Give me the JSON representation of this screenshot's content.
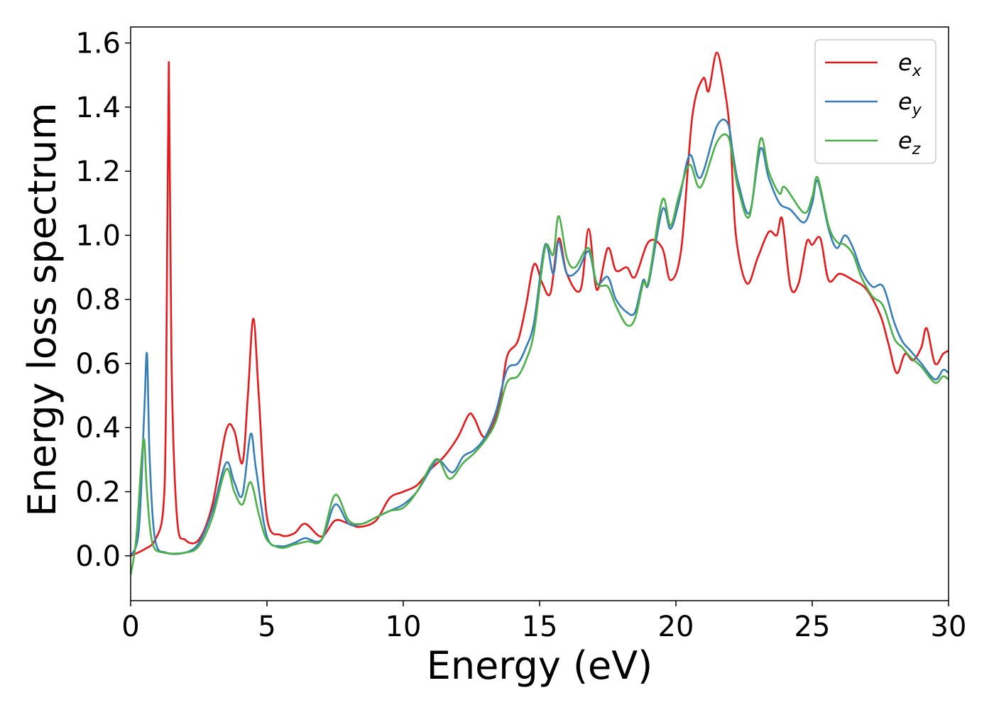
{
  "chart_data": {
    "type": "line",
    "xlabel": "Energy (eV)",
    "ylabel": "Energy loss spectrum",
    "xlim": [
      0,
      30
    ],
    "ylim": [
      -0.14,
      1.65
    ],
    "xticks": [
      "0",
      "5",
      "10",
      "15",
      "20",
      "25",
      "30"
    ],
    "yticks": [
      "0.0",
      "0.2",
      "0.4",
      "0.6",
      "0.8",
      "1.0",
      "1.2",
      "1.4",
      "1.6"
    ],
    "grid": false,
    "legend_position": "top-right",
    "series": [
      {
        "name": "e",
        "subscript": "x",
        "color": "#e41a1c",
        "points": [
          [
            0,
            0.0
          ],
          [
            0.5,
            0.02
          ],
          [
            0.9,
            0.05
          ],
          [
            1.2,
            0.15
          ],
          [
            1.3,
            0.5
          ],
          [
            1.4,
            1.54
          ],
          [
            1.5,
            0.6
          ],
          [
            1.7,
            0.12
          ],
          [
            2.0,
            0.05
          ],
          [
            2.5,
            0.05
          ],
          [
            3.0,
            0.16
          ],
          [
            3.5,
            0.39
          ],
          [
            3.8,
            0.39
          ],
          [
            4.1,
            0.29
          ],
          [
            4.3,
            0.5
          ],
          [
            4.5,
            0.74
          ],
          [
            4.7,
            0.5
          ],
          [
            5.0,
            0.12
          ],
          [
            5.5,
            0.065
          ],
          [
            6.0,
            0.07
          ],
          [
            6.4,
            0.1
          ],
          [
            7.0,
            0.06
          ],
          [
            7.5,
            0.11
          ],
          [
            8.0,
            0.1
          ],
          [
            8.4,
            0.09
          ],
          [
            9.0,
            0.11
          ],
          [
            9.5,
            0.18
          ],
          [
            10.0,
            0.2
          ],
          [
            10.5,
            0.22
          ],
          [
            11.0,
            0.27
          ],
          [
            11.5,
            0.31
          ],
          [
            12.0,
            0.37
          ],
          [
            12.4,
            0.44
          ],
          [
            12.6,
            0.43
          ],
          [
            13.0,
            0.37
          ],
          [
            13.5,
            0.46
          ],
          [
            13.8,
            0.62
          ],
          [
            14.2,
            0.67
          ],
          [
            14.5,
            0.78
          ],
          [
            14.8,
            0.91
          ],
          [
            15.1,
            0.85
          ],
          [
            15.4,
            0.82
          ],
          [
            15.7,
            0.99
          ],
          [
            16.0,
            0.88
          ],
          [
            16.5,
            0.83
          ],
          [
            16.8,
            1.02
          ],
          [
            17.1,
            0.83
          ],
          [
            17.5,
            0.96
          ],
          [
            17.8,
            0.89
          ],
          [
            18.2,
            0.9
          ],
          [
            18.5,
            0.87
          ],
          [
            19.0,
            0.98
          ],
          [
            19.5,
            0.96
          ],
          [
            19.8,
            0.86
          ],
          [
            20.2,
            0.96
          ],
          [
            20.6,
            1.37
          ],
          [
            21.0,
            1.49
          ],
          [
            21.2,
            1.45
          ],
          [
            21.5,
            1.57
          ],
          [
            21.8,
            1.45
          ],
          [
            22.0,
            1.3
          ],
          [
            22.2,
            1.0
          ],
          [
            22.6,
            0.85
          ],
          [
            23.0,
            0.93
          ],
          [
            23.4,
            1.01
          ],
          [
            23.7,
            1.0
          ],
          [
            23.9,
            1.05
          ],
          [
            24.2,
            0.84
          ],
          [
            24.5,
            0.85
          ],
          [
            24.8,
            0.98
          ],
          [
            25.0,
            0.97
          ],
          [
            25.3,
            0.99
          ],
          [
            25.6,
            0.86
          ],
          [
            26.0,
            0.88
          ],
          [
            26.5,
            0.86
          ],
          [
            27.0,
            0.83
          ],
          [
            27.5,
            0.75
          ],
          [
            27.8,
            0.66
          ],
          [
            28.1,
            0.57
          ],
          [
            28.4,
            0.63
          ],
          [
            28.7,
            0.61
          ],
          [
            29.0,
            0.65
          ],
          [
            29.2,
            0.71
          ],
          [
            29.5,
            0.6
          ],
          [
            29.8,
            0.63
          ],
          [
            30.0,
            0.64
          ]
        ]
      },
      {
        "name": "e",
        "subscript": "y",
        "color": "#377eb8",
        "points": [
          [
            0,
            0.0
          ],
          [
            0.3,
            0.08
          ],
          [
            0.5,
            0.45
          ],
          [
            0.6,
            0.63
          ],
          [
            0.7,
            0.3
          ],
          [
            0.9,
            0.05
          ],
          [
            1.3,
            0.01
          ],
          [
            2.0,
            0.01
          ],
          [
            2.5,
            0.04
          ],
          [
            3.0,
            0.14
          ],
          [
            3.5,
            0.29
          ],
          [
            3.8,
            0.23
          ],
          [
            4.1,
            0.19
          ],
          [
            4.4,
            0.38
          ],
          [
            4.6,
            0.27
          ],
          [
            5.0,
            0.06
          ],
          [
            5.5,
            0.03
          ],
          [
            6.0,
            0.04
          ],
          [
            6.4,
            0.055
          ],
          [
            7.0,
            0.05
          ],
          [
            7.5,
            0.16
          ],
          [
            8.0,
            0.1
          ],
          [
            8.5,
            0.1
          ],
          [
            9.0,
            0.12
          ],
          [
            9.5,
            0.14
          ],
          [
            10.0,
            0.16
          ],
          [
            10.5,
            0.2
          ],
          [
            11.0,
            0.27
          ],
          [
            11.3,
            0.3
          ],
          [
            11.8,
            0.26
          ],
          [
            12.2,
            0.31
          ],
          [
            12.6,
            0.33
          ],
          [
            13.0,
            0.37
          ],
          [
            13.4,
            0.45
          ],
          [
            13.8,
            0.58
          ],
          [
            14.2,
            0.6
          ],
          [
            14.5,
            0.65
          ],
          [
            14.8,
            0.73
          ],
          [
            15.2,
            0.97
          ],
          [
            15.5,
            0.88
          ],
          [
            15.7,
            0.98
          ],
          [
            16.0,
            0.88
          ],
          [
            16.4,
            0.89
          ],
          [
            16.8,
            0.95
          ],
          [
            17.1,
            0.85
          ],
          [
            17.5,
            0.87
          ],
          [
            17.8,
            0.8
          ],
          [
            18.2,
            0.76
          ],
          [
            18.5,
            0.76
          ],
          [
            18.8,
            0.86
          ],
          [
            19.0,
            0.85
          ],
          [
            19.5,
            1.08
          ],
          [
            19.8,
            1.02
          ],
          [
            20.1,
            1.1
          ],
          [
            20.5,
            1.25
          ],
          [
            20.9,
            1.18
          ],
          [
            21.5,
            1.34
          ],
          [
            21.9,
            1.35
          ],
          [
            22.1,
            1.25
          ],
          [
            22.3,
            1.16
          ],
          [
            22.7,
            1.07
          ],
          [
            23.1,
            1.27
          ],
          [
            23.4,
            1.18
          ],
          [
            23.8,
            1.1
          ],
          [
            24.2,
            1.08
          ],
          [
            24.7,
            1.04
          ],
          [
            25.0,
            1.1
          ],
          [
            25.2,
            1.17
          ],
          [
            25.6,
            1.02
          ],
          [
            25.9,
            0.96
          ],
          [
            26.2,
            1.0
          ],
          [
            26.5,
            0.96
          ],
          [
            26.8,
            0.89
          ],
          [
            27.2,
            0.84
          ],
          [
            27.6,
            0.84
          ],
          [
            28.0,
            0.73
          ],
          [
            28.3,
            0.67
          ],
          [
            28.6,
            0.64
          ],
          [
            29.0,
            0.6
          ],
          [
            29.5,
            0.55
          ],
          [
            29.8,
            0.58
          ],
          [
            30.0,
            0.57
          ]
        ]
      },
      {
        "name": "e",
        "subscript": "z",
        "color": "#4daf4a",
        "points": [
          [
            0,
            -0.06
          ],
          [
            0.2,
            0.05
          ],
          [
            0.4,
            0.3
          ],
          [
            0.5,
            0.36
          ],
          [
            0.6,
            0.2
          ],
          [
            0.8,
            0.04
          ],
          [
            1.2,
            0.01
          ],
          [
            2.0,
            0.01
          ],
          [
            2.5,
            0.03
          ],
          [
            3.0,
            0.12
          ],
          [
            3.5,
            0.27
          ],
          [
            3.8,
            0.2
          ],
          [
            4.1,
            0.16
          ],
          [
            4.4,
            0.23
          ],
          [
            4.7,
            0.13
          ],
          [
            5.0,
            0.05
          ],
          [
            5.5,
            0.025
          ],
          [
            6.0,
            0.035
          ],
          [
            6.5,
            0.045
          ],
          [
            7.0,
            0.05
          ],
          [
            7.5,
            0.19
          ],
          [
            8.0,
            0.11
          ],
          [
            8.5,
            0.1
          ],
          [
            9.0,
            0.12
          ],
          [
            9.5,
            0.14
          ],
          [
            10.0,
            0.15
          ],
          [
            10.5,
            0.2
          ],
          [
            11.0,
            0.28
          ],
          [
            11.3,
            0.3
          ],
          [
            11.7,
            0.24
          ],
          [
            12.2,
            0.29
          ],
          [
            12.6,
            0.32
          ],
          [
            13.0,
            0.36
          ],
          [
            13.4,
            0.42
          ],
          [
            13.8,
            0.54
          ],
          [
            14.2,
            0.56
          ],
          [
            14.5,
            0.61
          ],
          [
            14.8,
            0.7
          ],
          [
            15.2,
            0.96
          ],
          [
            15.5,
            0.94
          ],
          [
            15.7,
            1.06
          ],
          [
            16.0,
            0.93
          ],
          [
            16.3,
            0.9
          ],
          [
            16.8,
            0.96
          ],
          [
            17.1,
            0.85
          ],
          [
            17.5,
            0.84
          ],
          [
            17.8,
            0.78
          ],
          [
            18.2,
            0.72
          ],
          [
            18.5,
            0.74
          ],
          [
            18.8,
            0.85
          ],
          [
            19.0,
            0.86
          ],
          [
            19.5,
            1.11
          ],
          [
            19.8,
            1.03
          ],
          [
            20.1,
            1.12
          ],
          [
            20.5,
            1.22
          ],
          [
            20.9,
            1.15
          ],
          [
            21.5,
            1.29
          ],
          [
            21.9,
            1.31
          ],
          [
            22.1,
            1.23
          ],
          [
            22.3,
            1.14
          ],
          [
            22.7,
            1.06
          ],
          [
            23.1,
            1.3
          ],
          [
            23.4,
            1.2
          ],
          [
            23.8,
            1.13
          ],
          [
            24.0,
            1.15
          ],
          [
            24.7,
            1.07
          ],
          [
            25.0,
            1.12
          ],
          [
            25.2,
            1.18
          ],
          [
            25.6,
            1.03
          ],
          [
            25.9,
            0.98
          ],
          [
            26.2,
            0.97
          ],
          [
            26.5,
            0.94
          ],
          [
            26.8,
            0.87
          ],
          [
            27.2,
            0.81
          ],
          [
            27.6,
            0.78
          ],
          [
            28.0,
            0.68
          ],
          [
            28.3,
            0.65
          ],
          [
            28.6,
            0.62
          ],
          [
            29.0,
            0.59
          ],
          [
            29.5,
            0.54
          ],
          [
            29.8,
            0.56
          ],
          [
            30.0,
            0.55
          ]
        ]
      }
    ]
  }
}
